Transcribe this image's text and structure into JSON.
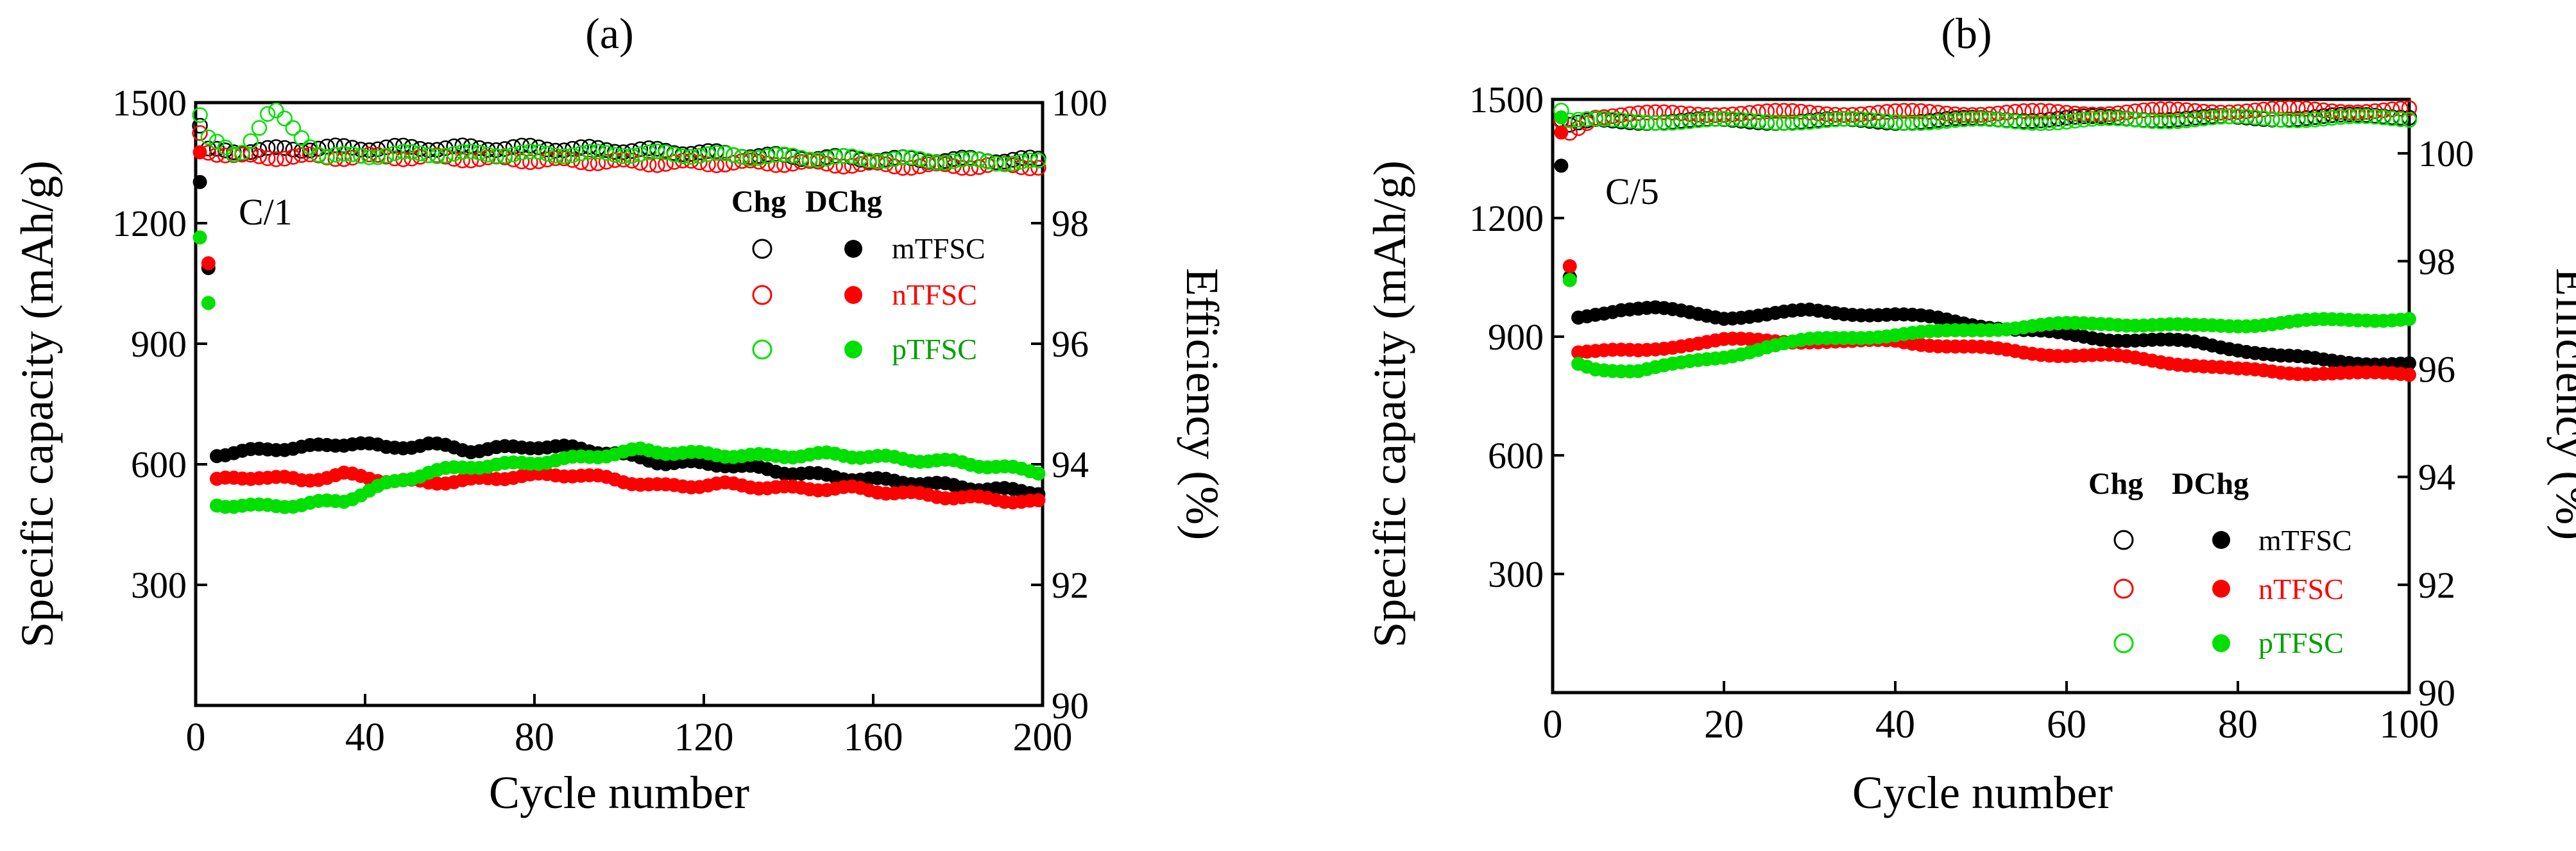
{
  "chart_data": [
    {
      "panel_label": "(a)",
      "type": "scatter",
      "rate_label": "C/1",
      "xlabel": "Cycle number",
      "ylabel_left": "Specific capacity (mAh/g)",
      "ylabel_right": "Efficiency (%)",
      "xlim": [
        0,
        200
      ],
      "ylim_left": [
        0,
        1500
      ],
      "ylim_right": [
        90,
        100
      ],
      "xticks": [
        0,
        40,
        80,
        120,
        160,
        200
      ],
      "yticks_left": [
        300,
        600,
        900,
        1200,
        1500
      ],
      "yticks_right": [
        90,
        92,
        94,
        96,
        98,
        100
      ],
      "legend": {
        "placement": "top-right",
        "header_charge": "Chg",
        "header_discharge": "DChg",
        "entries": [
          "mTFSC",
          "nTFSC",
          "pTFSC"
        ]
      },
      "series": [
        {
          "name": "mTFSC",
          "color": "#000000",
          "capacity_x": [
            1,
            2,
            3,
            5,
            10,
            20,
            30,
            38,
            45,
            55,
            65,
            80,
            90,
            100,
            110,
            125,
            140,
            155,
            170,
            185,
            200
          ],
          "capacity_y": [
            1300,
            1200,
            1090,
            625,
            630,
            640,
            645,
            655,
            640,
            650,
            635,
            645,
            640,
            625,
            605,
            600,
            580,
            565,
            555,
            540,
            530
          ],
          "efficiency_x": [
            1,
            3,
            10,
            30,
            50,
            80,
            110,
            140,
            170,
            200
          ],
          "efficiency_y": [
            99.6,
            99.2,
            99.2,
            99.25,
            99.25,
            99.25,
            99.2,
            99.1,
            99.05,
            99.05
          ]
        },
        {
          "name": "nTFSC",
          "color": "#ff0000",
          "capacity_x": [
            1,
            2,
            3,
            5,
            15,
            25,
            35,
            45,
            55,
            65,
            75,
            90,
            100,
            110,
            125,
            140,
            155,
            170,
            185,
            200
          ],
          "capacity_y": [
            1380,
            1150,
            1100,
            560,
            570,
            560,
            575,
            560,
            555,
            560,
            570,
            575,
            560,
            545,
            550,
            540,
            540,
            525,
            515,
            505
          ],
          "efficiency_x": [
            1,
            3,
            10,
            30,
            50,
            80,
            110,
            140,
            170,
            200
          ],
          "efficiency_y": [
            99.5,
            99.2,
            99.1,
            99.1,
            99.1,
            99.05,
            99.0,
            99.0,
            98.95,
            98.95
          ]
        },
        {
          "name": "pTFSC",
          "color": "#00e000",
          "capacity_x": [
            1,
            2,
            3,
            5,
            15,
            25,
            35,
            45,
            55,
            65,
            75,
            90,
            105,
            120,
            135,
            150,
            165,
            180,
            200
          ],
          "capacity_y": [
            1160,
            1100,
            1000,
            500,
            495,
            500,
            510,
            550,
            580,
            595,
            600,
            615,
            635,
            625,
            620,
            625,
            615,
            605,
            580
          ],
          "efficiency_x": [
            1,
            3,
            10,
            18,
            30,
            50,
            80,
            110,
            140,
            170,
            200
          ],
          "efficiency_y": [
            99.8,
            99.4,
            99.1,
            99.9,
            99.1,
            99.15,
            99.15,
            99.15,
            99.1,
            99.05,
            99.0
          ]
        }
      ]
    },
    {
      "panel_label": "(b)",
      "type": "scatter",
      "rate_label": "C/5",
      "xlabel": "Cycle number",
      "ylabel_left": "Specific capacity (mAh/g)",
      "ylabel_right": "Efficiency (%)",
      "xlim": [
        0,
        100
      ],
      "ylim_left": [
        0,
        1500
      ],
      "ylim_right": [
        90,
        101
      ],
      "xticks": [
        0,
        20,
        40,
        60,
        80,
        100
      ],
      "yticks_left": [
        300,
        600,
        900,
        1200,
        1500
      ],
      "yticks_right": [
        90,
        92,
        94,
        96,
        98,
        100
      ],
      "legend": {
        "placement": "bottom-right",
        "header_charge": "Chg",
        "header_discharge": "DChg",
        "entries": [
          "mTFSC",
          "nTFSC",
          "pTFSC"
        ]
      },
      "series": [
        {
          "name": "mTFSC",
          "color": "#000000",
          "capacity_x": [
            1,
            2,
            3,
            5,
            8,
            12,
            16,
            20,
            25,
            30,
            35,
            40,
            45,
            50,
            55,
            60,
            65,
            70,
            75,
            80,
            85,
            90,
            95,
            100
          ],
          "capacity_y": [
            1330,
            1050,
            950,
            960,
            970,
            970,
            960,
            950,
            955,
            965,
            960,
            955,
            945,
            930,
            915,
            905,
            895,
            890,
            885,
            870,
            850,
            840,
            835,
            830
          ],
          "efficiency_x": [
            1,
            2,
            5,
            20,
            40,
            60,
            80,
            100
          ],
          "efficiency_y": [
            100.6,
            100.5,
            100.6,
            100.6,
            100.6,
            100.65,
            100.65,
            100.7
          ]
        },
        {
          "name": "nTFSC",
          "color": "#ff0000",
          "capacity_x": [
            1,
            2,
            3,
            5,
            10,
            15,
            20,
            25,
            30,
            35,
            40,
            45,
            50,
            55,
            60,
            65,
            70,
            75,
            80,
            85,
            90,
            95,
            100
          ],
          "capacity_y": [
            1420,
            1080,
            860,
            860,
            865,
            880,
            890,
            890,
            890,
            885,
            890,
            880,
            870,
            860,
            855,
            850,
            840,
            830,
            815,
            810,
            810,
            805,
            805
          ],
          "efficiency_x": [
            1,
            2,
            5,
            20,
            40,
            60,
            80,
            100
          ],
          "efficiency_y": [
            100.6,
            100.4,
            100.7,
            100.75,
            100.75,
            100.75,
            100.8,
            100.8
          ]
        },
        {
          "name": "pTFSC",
          "color": "#00e000",
          "capacity_x": [
            1,
            2,
            3,
            5,
            10,
            15,
            20,
            25,
            30,
            35,
            40,
            45,
            50,
            55,
            60,
            65,
            70,
            75,
            80,
            85,
            90,
            95,
            100
          ],
          "capacity_y": [
            1450,
            1040,
            830,
            820,
            815,
            830,
            850,
            875,
            890,
            900,
            905,
            910,
            920,
            925,
            930,
            935,
            930,
            925,
            930,
            935,
            940,
            945,
            945
          ],
          "efficiency_x": [
            1,
            2,
            5,
            20,
            40,
            60,
            80,
            100
          ],
          "efficiency_y": [
            100.8,
            100.6,
            100.6,
            100.6,
            100.6,
            100.6,
            100.65,
            100.65
          ]
        }
      ]
    }
  ]
}
